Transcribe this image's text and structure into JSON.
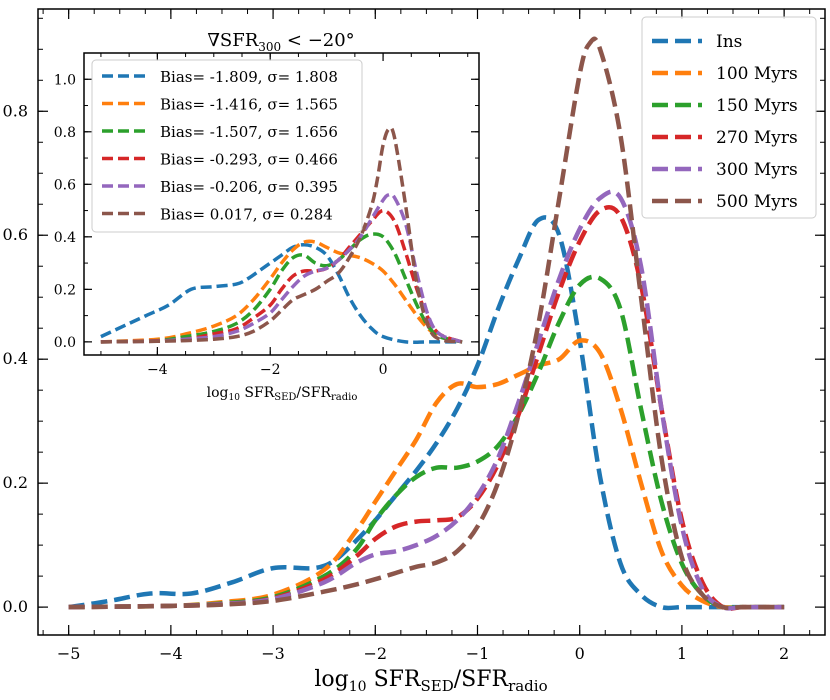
{
  "chart_data": [
    {
      "type": "line",
      "title": "",
      "xlabel": {
        "prefix": "log",
        "prefix_sub": "10",
        "main": " SFR",
        "sub1": "SED",
        "mid": "/SFR",
        "sub2": "radio"
      },
      "xlim": [
        -5.3,
        2.4
      ],
      "ylim": [
        -0.045,
        0.965
      ],
      "xticks": [
        -5,
        -4,
        -3,
        -2,
        -1,
        0,
        1,
        2
      ],
      "yticks": [
        0.0,
        0.2,
        0.4,
        0.6,
        0.8
      ],
      "xtick_labels": [
        "−5",
        "−4",
        "−3",
        "−2",
        "−1",
        "0",
        "1",
        "2"
      ],
      "ytick_labels": [
        "0.0",
        "0.2",
        "0.4",
        "0.6",
        "0.8"
      ],
      "grid": false,
      "legend": "top-right",
      "series": [
        {
          "name": "Ins",
          "color": "#1f77b4",
          "x": [
            -5.0,
            -4.6,
            -4.2,
            -3.8,
            -3.4,
            -3.0,
            -2.6,
            -2.4,
            -2.2,
            -2.0,
            -1.8,
            -1.6,
            -1.4,
            -1.2,
            -1.0,
            -0.8,
            -0.6,
            -0.4,
            -0.2,
            0.0,
            0.2,
            0.4,
            0.6,
            0.8,
            1.0,
            1.2,
            1.5,
            2.0
          ],
          "y": [
            0.0,
            0.01,
            0.022,
            0.022,
            0.04,
            0.063,
            0.063,
            0.075,
            0.105,
            0.14,
            0.18,
            0.22,
            0.265,
            0.32,
            0.39,
            0.48,
            0.56,
            0.625,
            0.6,
            0.43,
            0.21,
            0.07,
            0.02,
            0.0,
            0.0,
            0.0,
            0.0,
            0.0
          ]
        },
        {
          "name": "100 Myrs",
          "color": "#ff7f0e",
          "x": [
            -5.0,
            -4.0,
            -3.5,
            -3.0,
            -2.5,
            -2.2,
            -2.0,
            -1.8,
            -1.6,
            -1.4,
            -1.2,
            -1.0,
            -0.8,
            -0.6,
            -0.4,
            -0.2,
            0.0,
            0.2,
            0.4,
            0.6,
            0.8,
            1.0,
            1.2,
            1.4,
            1.6,
            2.0
          ],
          "y": [
            0.0,
            0.002,
            0.008,
            0.02,
            0.06,
            0.12,
            0.17,
            0.22,
            0.27,
            0.33,
            0.36,
            0.355,
            0.36,
            0.375,
            0.39,
            0.4,
            0.43,
            0.41,
            0.32,
            0.2,
            0.09,
            0.035,
            0.01,
            0.0,
            0.0,
            0.0
          ]
        },
        {
          "name": "150 Myrs",
          "color": "#2ca02c",
          "x": [
            -5.0,
            -4.0,
            -3.5,
            -3.0,
            -2.5,
            -2.2,
            -2.0,
            -1.8,
            -1.6,
            -1.4,
            -1.2,
            -1.0,
            -0.8,
            -0.6,
            -0.4,
            -0.2,
            0.0,
            0.2,
            0.4,
            0.6,
            0.8,
            1.0,
            1.2,
            1.4,
            1.6,
            2.0
          ],
          "y": [
            0.0,
            0.002,
            0.006,
            0.016,
            0.05,
            0.09,
            0.14,
            0.18,
            0.21,
            0.225,
            0.225,
            0.235,
            0.26,
            0.31,
            0.38,
            0.46,
            0.52,
            0.53,
            0.48,
            0.32,
            0.17,
            0.07,
            0.02,
            0.0,
            0.0,
            0.0
          ]
        },
        {
          "name": "270 Myrs",
          "color": "#d62728",
          "x": [
            -5.0,
            -4.0,
            -3.5,
            -3.0,
            -2.5,
            -2.2,
            -2.0,
            -1.8,
            -1.6,
            -1.4,
            -1.2,
            -1.0,
            -0.8,
            -0.6,
            -0.4,
            -0.2,
            0.0,
            0.2,
            0.4,
            0.6,
            0.8,
            1.0,
            1.2,
            1.4,
            1.6,
            2.0
          ],
          "y": [
            0.0,
            0.002,
            0.005,
            0.014,
            0.045,
            0.08,
            0.11,
            0.13,
            0.138,
            0.14,
            0.145,
            0.175,
            0.23,
            0.31,
            0.41,
            0.51,
            0.59,
            0.64,
            0.63,
            0.52,
            0.32,
            0.14,
            0.04,
            0.0,
            0.0,
            0.0
          ]
        },
        {
          "name": "300 Myrs",
          "color": "#9467bd",
          "x": [
            -5.0,
            -4.0,
            -3.5,
            -3.0,
            -2.5,
            -2.2,
            -2.0,
            -1.8,
            -1.6,
            -1.4,
            -1.2,
            -1.0,
            -0.8,
            -0.6,
            -0.4,
            -0.2,
            0.0,
            0.2,
            0.4,
            0.6,
            0.8,
            1.0,
            1.2,
            1.4,
            1.6,
            2.0
          ],
          "y": [
            0.0,
            0.002,
            0.005,
            0.013,
            0.04,
            0.07,
            0.085,
            0.09,
            0.1,
            0.115,
            0.14,
            0.18,
            0.24,
            0.33,
            0.43,
            0.53,
            0.61,
            0.66,
            0.66,
            0.55,
            0.32,
            0.13,
            0.03,
            0.0,
            0.0,
            0.0
          ]
        },
        {
          "name": "500 Myrs",
          "color": "#8c564b",
          "x": [
            -5.0,
            -4.0,
            -3.5,
            -3.0,
            -2.5,
            -2.2,
            -2.0,
            -1.8,
            -1.6,
            -1.4,
            -1.2,
            -1.0,
            -0.8,
            -0.6,
            -0.4,
            -0.2,
            0.0,
            0.1,
            0.2,
            0.4,
            0.6,
            0.8,
            1.0,
            1.2,
            1.4,
            1.6,
            2.0
          ],
          "y": [
            0.0,
            0.002,
            0.004,
            0.01,
            0.025,
            0.036,
            0.045,
            0.055,
            0.065,
            0.072,
            0.09,
            0.13,
            0.2,
            0.31,
            0.46,
            0.66,
            0.86,
            0.91,
            0.9,
            0.76,
            0.5,
            0.24,
            0.08,
            0.02,
            0.0,
            0.0,
            0.0
          ]
        }
      ]
    },
    {
      "type": "line",
      "title": {
        "main": "∇SFR",
        "sub": "300",
        "rest": " < −20°"
      },
      "xlabel": {
        "prefix": "log",
        "prefix_sub": "10",
        "main": " SFR",
        "sub1": "SED",
        "mid": "/SFR",
        "sub2": "radio"
      },
      "xlim": [
        -5.3,
        1.7
      ],
      "ylim": [
        -0.05,
        1.1
      ],
      "xticks": [
        -4,
        -2,
        0
      ],
      "yticks": [
        0.0,
        0.2,
        0.4,
        0.6,
        0.8,
        1.0
      ],
      "xtick_labels": [
        "−4",
        "−2",
        "0"
      ],
      "ytick_labels": [
        "0.0",
        "0.2",
        "0.4",
        "0.6",
        "0.8",
        "1.0"
      ],
      "grid": false,
      "legend": "top-left",
      "series": [
        {
          "name": "Bias= -1.809, σ= 1.808",
          "color": "#1f77b4",
          "x": [
            -5.0,
            -4.6,
            -4.2,
            -3.8,
            -3.4,
            -3.0,
            -2.6,
            -2.4,
            -2.2,
            -2.0,
            -1.8,
            -1.6,
            -1.4,
            -1.2,
            -1.0,
            -0.8,
            -0.6,
            -0.4,
            -0.2,
            0.0,
            0.4,
            0.8,
            1.4
          ],
          "y": [
            0.02,
            0.06,
            0.1,
            0.14,
            0.2,
            0.21,
            0.22,
            0.24,
            0.27,
            0.3,
            0.33,
            0.36,
            0.37,
            0.36,
            0.33,
            0.26,
            0.17,
            0.1,
            0.05,
            0.02,
            0.0,
            0.0,
            0.0
          ]
        },
        {
          "name": "Bias= -1.416, σ= 1.565",
          "color": "#ff7f0e",
          "x": [
            -5.0,
            -4.0,
            -3.5,
            -3.0,
            -2.6,
            -2.3,
            -2.0,
            -1.8,
            -1.6,
            -1.4,
            -1.2,
            -1.0,
            -0.8,
            -0.6,
            -0.4,
            -0.2,
            0.0,
            0.2,
            0.4,
            0.6,
            0.8,
            1.0,
            1.4
          ],
          "y": [
            0.0,
            0.01,
            0.03,
            0.06,
            0.1,
            0.16,
            0.24,
            0.3,
            0.35,
            0.38,
            0.38,
            0.36,
            0.34,
            0.33,
            0.32,
            0.3,
            0.27,
            0.22,
            0.16,
            0.1,
            0.05,
            0.02,
            0.0
          ]
        },
        {
          "name": "Bias= -1.507, σ= 1.656",
          "color": "#2ca02c",
          "x": [
            -5.0,
            -4.0,
            -3.5,
            -3.0,
            -2.6,
            -2.3,
            -2.0,
            -1.8,
            -1.6,
            -1.4,
            -1.2,
            -1.0,
            -0.8,
            -0.6,
            -0.4,
            -0.2,
            0.0,
            0.2,
            0.4,
            0.6,
            0.8,
            1.0,
            1.4
          ],
          "y": [
            0.0,
            0.005,
            0.02,
            0.04,
            0.07,
            0.12,
            0.2,
            0.27,
            0.32,
            0.33,
            0.3,
            0.29,
            0.31,
            0.35,
            0.39,
            0.41,
            0.4,
            0.34,
            0.24,
            0.14,
            0.06,
            0.02,
            0.0
          ]
        },
        {
          "name": "Bias= -0.293, σ= 0.466",
          "color": "#d62728",
          "x": [
            -5.0,
            -4.0,
            -3.5,
            -3.0,
            -2.6,
            -2.3,
            -2.0,
            -1.8,
            -1.6,
            -1.4,
            -1.2,
            -1.0,
            -0.8,
            -0.6,
            -0.4,
            -0.2,
            0.0,
            0.2,
            0.4,
            0.6,
            0.8,
            1.0,
            1.4
          ],
          "y": [
            0.0,
            0.004,
            0.01,
            0.03,
            0.05,
            0.09,
            0.14,
            0.2,
            0.25,
            0.27,
            0.27,
            0.28,
            0.31,
            0.36,
            0.41,
            0.46,
            0.5,
            0.46,
            0.34,
            0.2,
            0.09,
            0.03,
            0.0
          ]
        },
        {
          "name": "Bias= -0.206, σ= 0.395",
          "color": "#9467bd",
          "x": [
            -5.0,
            -4.0,
            -3.5,
            -3.0,
            -2.6,
            -2.3,
            -2.0,
            -1.8,
            -1.6,
            -1.4,
            -1.2,
            -1.0,
            -0.8,
            -0.6,
            -0.4,
            -0.2,
            0.0,
            0.1,
            0.2,
            0.4,
            0.6,
            0.8,
            1.0,
            1.4
          ],
          "y": [
            0.0,
            0.003,
            0.01,
            0.02,
            0.04,
            0.07,
            0.11,
            0.16,
            0.21,
            0.25,
            0.27,
            0.28,
            0.31,
            0.35,
            0.4,
            0.47,
            0.54,
            0.56,
            0.55,
            0.45,
            0.26,
            0.1,
            0.03,
            0.0
          ]
        },
        {
          "name": "Bias= 0.017, σ= 0.284",
          "color": "#8c564b",
          "x": [
            -5.0,
            -4.0,
            -3.5,
            -3.0,
            -2.6,
            -2.3,
            -2.0,
            -1.8,
            -1.6,
            -1.4,
            -1.2,
            -1.0,
            -0.8,
            -0.6,
            -0.4,
            -0.2,
            -0.1,
            0.0,
            0.1,
            0.2,
            0.4,
            0.6,
            0.8,
            1.0,
            1.4
          ],
          "y": [
            0.0,
            0.002,
            0.005,
            0.01,
            0.02,
            0.04,
            0.08,
            0.12,
            0.16,
            0.18,
            0.2,
            0.23,
            0.26,
            0.32,
            0.4,
            0.52,
            0.62,
            0.75,
            0.81,
            0.78,
            0.52,
            0.22,
            0.06,
            0.01,
            0.0
          ]
        }
      ]
    }
  ]
}
